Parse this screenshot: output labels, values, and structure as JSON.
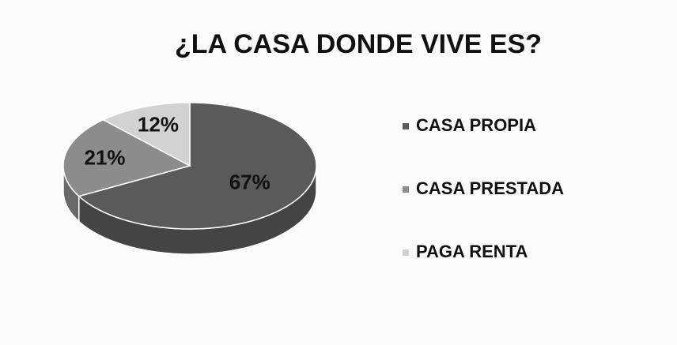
{
  "chart_data": {
    "type": "pie",
    "title": "¿LA CASA DONDE VIVE ES?",
    "categories": [
      "CASA PROPIA",
      "CASA PRESTADA",
      "PAGA RENTA"
    ],
    "values": [
      67,
      21,
      12
    ],
    "value_labels": [
      "67%",
      "21%",
      "12%"
    ],
    "colors": [
      "#5a5a5a",
      "#8c8c8c",
      "#d2d2d2"
    ],
    "legend": "right"
  }
}
